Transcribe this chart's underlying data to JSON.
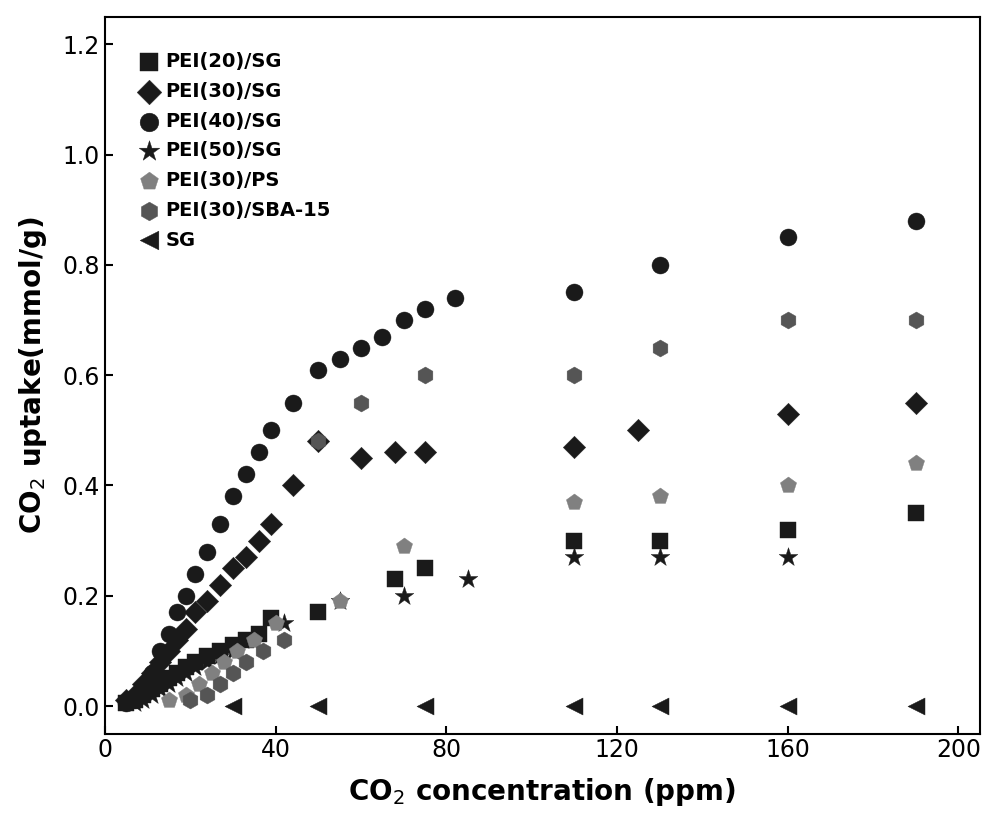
{
  "title": "",
  "xlabel": "CO$_2$ concentration (ppm)",
  "ylabel": "CO$_2$ uptake(mmol/g)",
  "xlim": [
    0,
    205
  ],
  "ylim": [
    -0.05,
    1.25
  ],
  "xticks": [
    0,
    40,
    80,
    120,
    160,
    200
  ],
  "yticks": [
    0.0,
    0.2,
    0.4,
    0.6,
    0.8,
    1.0,
    1.2
  ],
  "background_color": "#ffffff",
  "series": {
    "PEI(20)/SG": {
      "marker": "s",
      "color": "#1a1a1a",
      "markersize": 130,
      "x": [
        5,
        7,
        9,
        11,
        13,
        15,
        17,
        19,
        21,
        24,
        27,
        30,
        33,
        36,
        39,
        50,
        68,
        75,
        110,
        130,
        160,
        190
      ],
      "y": [
        0.005,
        0.01,
        0.02,
        0.03,
        0.04,
        0.05,
        0.06,
        0.07,
        0.08,
        0.09,
        0.1,
        0.11,
        0.12,
        0.13,
        0.16,
        0.17,
        0.23,
        0.25,
        0.3,
        0.3,
        0.32,
        0.35
      ]
    },
    "PEI(30)/SG": {
      "marker": "D",
      "color": "#1a1a1a",
      "markersize": 130,
      "x": [
        5,
        7,
        9,
        11,
        13,
        15,
        17,
        19,
        21,
        24,
        27,
        30,
        33,
        36,
        39,
        44,
        50,
        60,
        68,
        75,
        110,
        125,
        160,
        190
      ],
      "y": [
        0.01,
        0.02,
        0.04,
        0.06,
        0.08,
        0.1,
        0.12,
        0.14,
        0.17,
        0.19,
        0.22,
        0.25,
        0.27,
        0.3,
        0.33,
        0.4,
        0.48,
        0.45,
        0.46,
        0.46,
        0.47,
        0.5,
        0.53,
        0.55
      ]
    },
    "PEI(40)/SG": {
      "marker": "o",
      "color": "#1a1a1a",
      "markersize": 150,
      "x": [
        5,
        7,
        9,
        11,
        13,
        15,
        17,
        19,
        21,
        24,
        27,
        30,
        33,
        36,
        39,
        44,
        50,
        55,
        60,
        65,
        70,
        75,
        82,
        110,
        130,
        160,
        190
      ],
      "y": [
        0.005,
        0.01,
        0.03,
        0.06,
        0.1,
        0.13,
        0.17,
        0.2,
        0.24,
        0.28,
        0.33,
        0.38,
        0.42,
        0.46,
        0.5,
        0.55,
        0.61,
        0.63,
        0.65,
        0.67,
        0.7,
        0.72,
        0.74,
        0.75,
        0.8,
        0.85,
        0.88
      ]
    },
    "PEI(50)/SG": {
      "marker": "*",
      "color": "#1a1a1a",
      "markersize": 200,
      "x": [
        7,
        9,
        11,
        13,
        15,
        17,
        19,
        21,
        24,
        27,
        30,
        35,
        42,
        55,
        70,
        85,
        110,
        130,
        160
      ],
      "y": [
        0.005,
        0.01,
        0.02,
        0.03,
        0.04,
        0.05,
        0.06,
        0.07,
        0.08,
        0.09,
        0.1,
        0.12,
        0.15,
        0.19,
        0.2,
        0.23,
        0.27,
        0.27,
        0.27
      ]
    },
    "PEI(30)/PS": {
      "marker": "p",
      "color": "#808080",
      "markersize": 150,
      "x": [
        15,
        19,
        22,
        25,
        28,
        31,
        35,
        40,
        55,
        70,
        110,
        130,
        160,
        190
      ],
      "y": [
        0.01,
        0.02,
        0.04,
        0.06,
        0.08,
        0.1,
        0.12,
        0.15,
        0.19,
        0.29,
        0.37,
        0.38,
        0.4,
        0.44
      ]
    },
    "PEI(30)/SBA-15": {
      "marker": "h",
      "color": "#555555",
      "markersize": 150,
      "x": [
        20,
        24,
        27,
        30,
        33,
        37,
        42,
        50,
        60,
        75,
        110,
        130,
        160,
        190
      ],
      "y": [
        0.01,
        0.02,
        0.04,
        0.06,
        0.08,
        0.1,
        0.12,
        0.48,
        0.55,
        0.6,
        0.6,
        0.65,
        0.7,
        0.7
      ]
    },
    "SG": {
      "marker": "<",
      "color": "#1a1a1a",
      "markersize": 150,
      "x": [
        30,
        50,
        75,
        110,
        130,
        160,
        190
      ],
      "y": [
        0.0,
        0.0,
        0.0,
        0.0,
        0.0,
        0.0,
        0.0
      ]
    }
  },
  "legend_order": [
    "PEI(20)/SG",
    "PEI(30)/SG",
    "PEI(40)/SG",
    "PEI(50)/SG",
    "PEI(30)/PS",
    "PEI(30)/SBA-15",
    "SG"
  ]
}
